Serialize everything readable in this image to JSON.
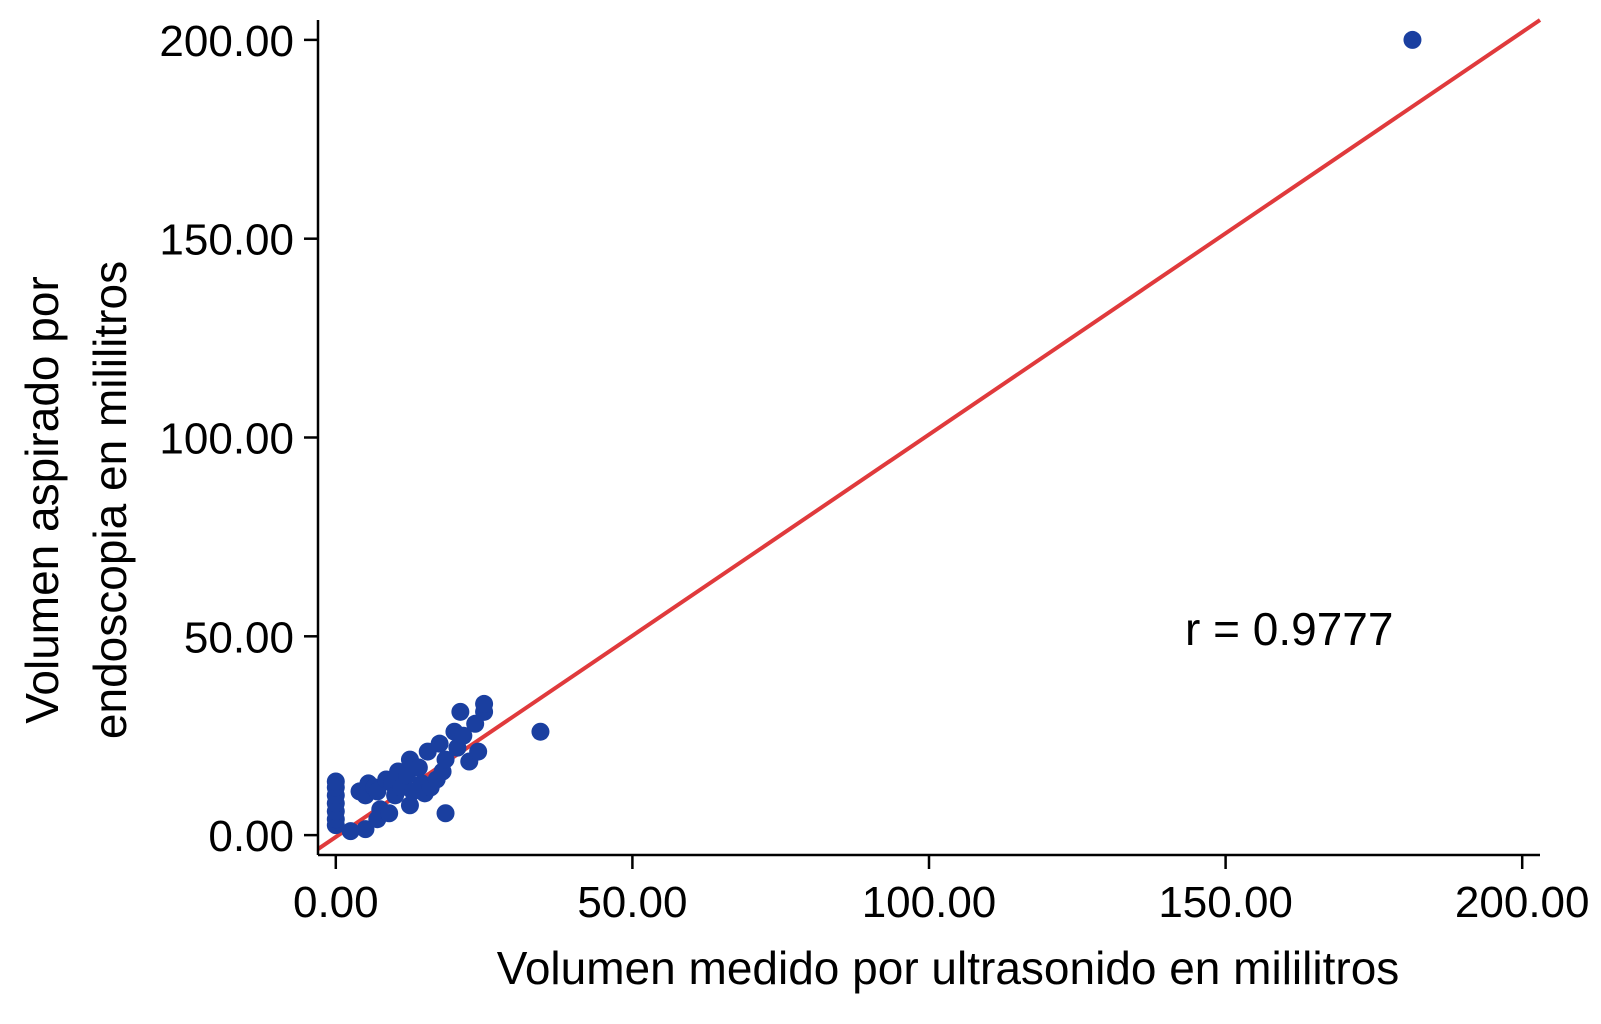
{
  "chart_data": {
    "type": "scatter",
    "title": "",
    "xlabel": "Volumen medido por ultrasonido en mililitros",
    "ylabel_lines": [
      "Volumen aspirado por",
      "endoscopia en mililitros"
    ],
    "xlim": [
      -3,
      203
    ],
    "ylim": [
      -5,
      205
    ],
    "x_ticks": [
      0,
      50,
      100,
      150,
      200
    ],
    "x_tick_labels": [
      "0.00",
      "50.00",
      "100.00",
      "150.00",
      "200.00"
    ],
    "y_ticks": [
      0,
      50,
      100,
      150,
      200
    ],
    "y_tick_labels": [
      "0.00",
      "50.00",
      "100.00",
      "150.00",
      "200.00"
    ],
    "grid": false,
    "annotation": "r = 0.9777",
    "point_color": "#1a3fa0",
    "line_color": "#e03a3c",
    "fit_line": {
      "x": [
        -3,
        203
      ],
      "y": [
        -3.5,
        205
      ]
    },
    "points": [
      {
        "x": 0,
        "y": 2.5
      },
      {
        "x": 0,
        "y": 4
      },
      {
        "x": 0,
        "y": 6
      },
      {
        "x": 0,
        "y": 8
      },
      {
        "x": 0,
        "y": 10
      },
      {
        "x": 0,
        "y": 12
      },
      {
        "x": 0,
        "y": 13.5
      },
      {
        "x": 2.5,
        "y": 1
      },
      {
        "x": 5,
        "y": 1.5
      },
      {
        "x": 4,
        "y": 11
      },
      {
        "x": 5,
        "y": 10
      },
      {
        "x": 5.5,
        "y": 13
      },
      {
        "x": 6.5,
        "y": 12
      },
      {
        "x": 7,
        "y": 11
      },
      {
        "x": 7,
        "y": 4
      },
      {
        "x": 7.5,
        "y": 6.5
      },
      {
        "x": 8.5,
        "y": 14
      },
      {
        "x": 9,
        "y": 5.5
      },
      {
        "x": 9.5,
        "y": 13
      },
      {
        "x": 10,
        "y": 10
      },
      {
        "x": 10.5,
        "y": 16
      },
      {
        "x": 11,
        "y": 12
      },
      {
        "x": 12,
        "y": 15
      },
      {
        "x": 12.5,
        "y": 19
      },
      {
        "x": 12.5,
        "y": 7.5
      },
      {
        "x": 13,
        "y": 11
      },
      {
        "x": 14,
        "y": 17
      },
      {
        "x": 14.5,
        "y": 13
      },
      {
        "x": 15,
        "y": 10.5
      },
      {
        "x": 15.5,
        "y": 21
      },
      {
        "x": 16,
        "y": 12
      },
      {
        "x": 17,
        "y": 14
      },
      {
        "x": 17.5,
        "y": 23
      },
      {
        "x": 18,
        "y": 16
      },
      {
        "x": 18.5,
        "y": 19
      },
      {
        "x": 18.5,
        "y": 5.5
      },
      {
        "x": 20,
        "y": 26
      },
      {
        "x": 20.5,
        "y": 22
      },
      {
        "x": 21,
        "y": 31
      },
      {
        "x": 21.5,
        "y": 25
      },
      {
        "x": 22.5,
        "y": 18.5
      },
      {
        "x": 23.5,
        "y": 28
      },
      {
        "x": 24,
        "y": 21
      },
      {
        "x": 25,
        "y": 31
      },
      {
        "x": 25,
        "y": 33
      },
      {
        "x": 34.5,
        "y": 26
      },
      {
        "x": 181.5,
        "y": 200
      }
    ]
  }
}
